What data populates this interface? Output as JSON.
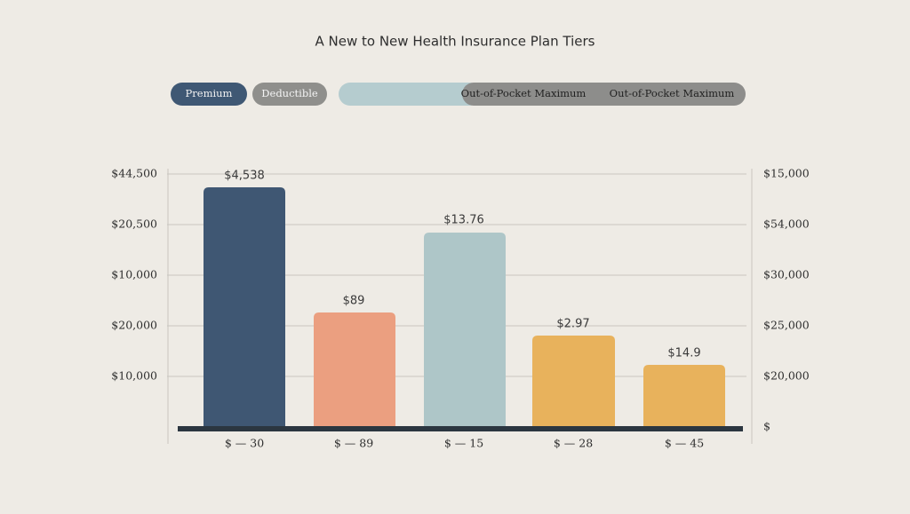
{
  "title": "A New to New Health Insurance Plan Tiers",
  "legend": [
    "Premium",
    "Deductible",
    "Out-of-Pocket Maximum",
    "Out-of-Pocket Maximum"
  ],
  "left_axis_labels": [
    "$44,500",
    "$20,500",
    "$10,000",
    "$20,000",
    "$10,000"
  ],
  "right_axis_labels": [
    "$15,000",
    "$54,000",
    "$30,000",
    "$25,000",
    "$20,000",
    "$"
  ],
  "bars": [
    {
      "label": "$4,538",
      "x_label": "$ — 30"
    },
    {
      "label": "$89",
      "x_label": "$ — 89"
    },
    {
      "label": "$13.76",
      "x_label": "$ — 15"
    },
    {
      "label": "$2.97",
      "x_label": "$ — 28"
    },
    {
      "label": "$14.9",
      "x_label": "$ — 45"
    }
  ]
}
